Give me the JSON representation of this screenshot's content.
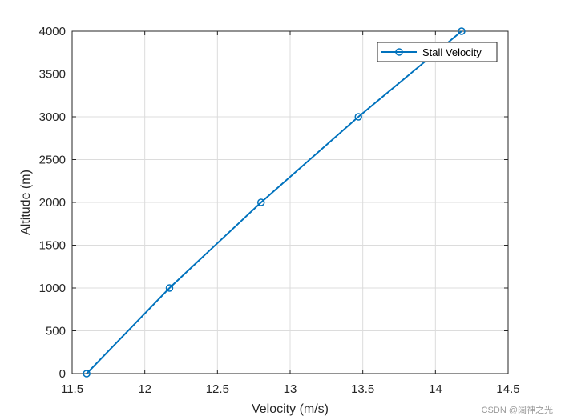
{
  "chart_data": {
    "type": "line",
    "xlabel": "Velocity (m/s)",
    "ylabel": "Altitude (m)",
    "xlim": [
      11.5,
      14.5
    ],
    "ylim": [
      0,
      4000
    ],
    "xticks": [
      11.5,
      12,
      12.5,
      13,
      13.5,
      14,
      14.5
    ],
    "xtick_labels": [
      "11.5",
      "12",
      "12.5",
      "13",
      "13.5",
      "14",
      "14.5"
    ],
    "yticks": [
      0,
      500,
      1000,
      1500,
      2000,
      2500,
      3000,
      3500,
      4000
    ],
    "ytick_labels": [
      "0",
      "500",
      "1000",
      "1500",
      "2000",
      "2500",
      "3000",
      "3500",
      "4000"
    ],
    "grid": true,
    "legend_position": "top-right",
    "series": [
      {
        "name": "Stall Velocity",
        "color": "#0072BD",
        "marker": "circle",
        "points": [
          {
            "x": 11.6,
            "y": 0
          },
          {
            "x": 12.17,
            "y": 1000
          },
          {
            "x": 12.8,
            "y": 2000
          },
          {
            "x": 13.47,
            "y": 3000
          },
          {
            "x": 14.18,
            "y": 4000
          }
        ]
      }
    ]
  },
  "watermark": "CSDN @阔神之光"
}
